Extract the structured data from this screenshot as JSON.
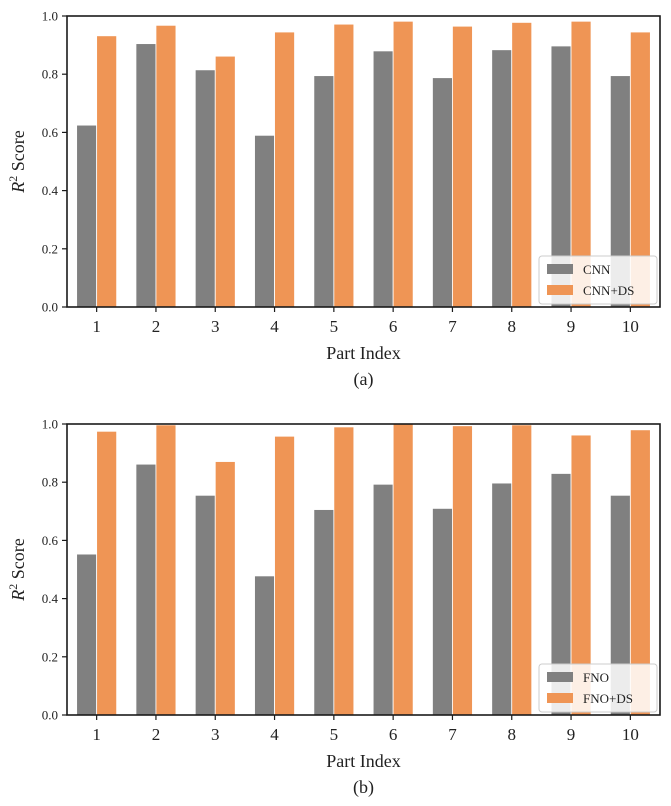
{
  "colors": {
    "baseline": "#808080",
    "ds": "#EF9555"
  },
  "chart_data": [
    {
      "type": "bar",
      "panel": "(a)",
      "categories": [
        "1",
        "2",
        "3",
        "4",
        "5",
        "6",
        "7",
        "8",
        "9",
        "10"
      ],
      "series": [
        {
          "name": "CNN",
          "values": [
            0.625,
            0.905,
            0.815,
            0.59,
            0.795,
            0.88,
            0.788,
            0.884,
            0.897,
            0.795
          ]
        },
        {
          "name": "CNN+DS",
          "values": [
            0.932,
            0.968,
            0.862,
            0.945,
            0.972,
            0.982,
            0.965,
            0.978,
            0.982,
            0.945
          ]
        }
      ],
      "xlabel": "Part Index",
      "ylabel_base": "R",
      "ylabel_sup": "2",
      "ylabel_rest": " Score",
      "ylim": [
        0,
        1.0
      ],
      "yticks": [
        "0.0",
        "0.2",
        "0.4",
        "0.6",
        "0.8",
        "1.0"
      ],
      "legend_position": "bottom-right"
    },
    {
      "type": "bar",
      "panel": "(b)",
      "categories": [
        "1",
        "2",
        "3",
        "4",
        "5",
        "6",
        "7",
        "8",
        "9",
        "10"
      ],
      "series": [
        {
          "name": "FNO",
          "values": [
            0.553,
            0.862,
            0.755,
            0.478,
            0.706,
            0.793,
            0.71,
            0.797,
            0.83,
            0.755
          ]
        },
        {
          "name": "FNO+DS",
          "values": [
            0.975,
            0.997,
            0.871,
            0.958,
            0.99,
            1.0,
            0.994,
            0.997,
            0.962,
            0.98
          ]
        }
      ],
      "xlabel": "Part Index",
      "ylabel_base": "R",
      "ylabel_sup": "2",
      "ylabel_rest": " Score",
      "ylim": [
        0,
        1.0
      ],
      "yticks": [
        "0.0",
        "0.2",
        "0.4",
        "0.6",
        "0.8",
        "1.0"
      ],
      "legend_position": "bottom-right"
    }
  ]
}
